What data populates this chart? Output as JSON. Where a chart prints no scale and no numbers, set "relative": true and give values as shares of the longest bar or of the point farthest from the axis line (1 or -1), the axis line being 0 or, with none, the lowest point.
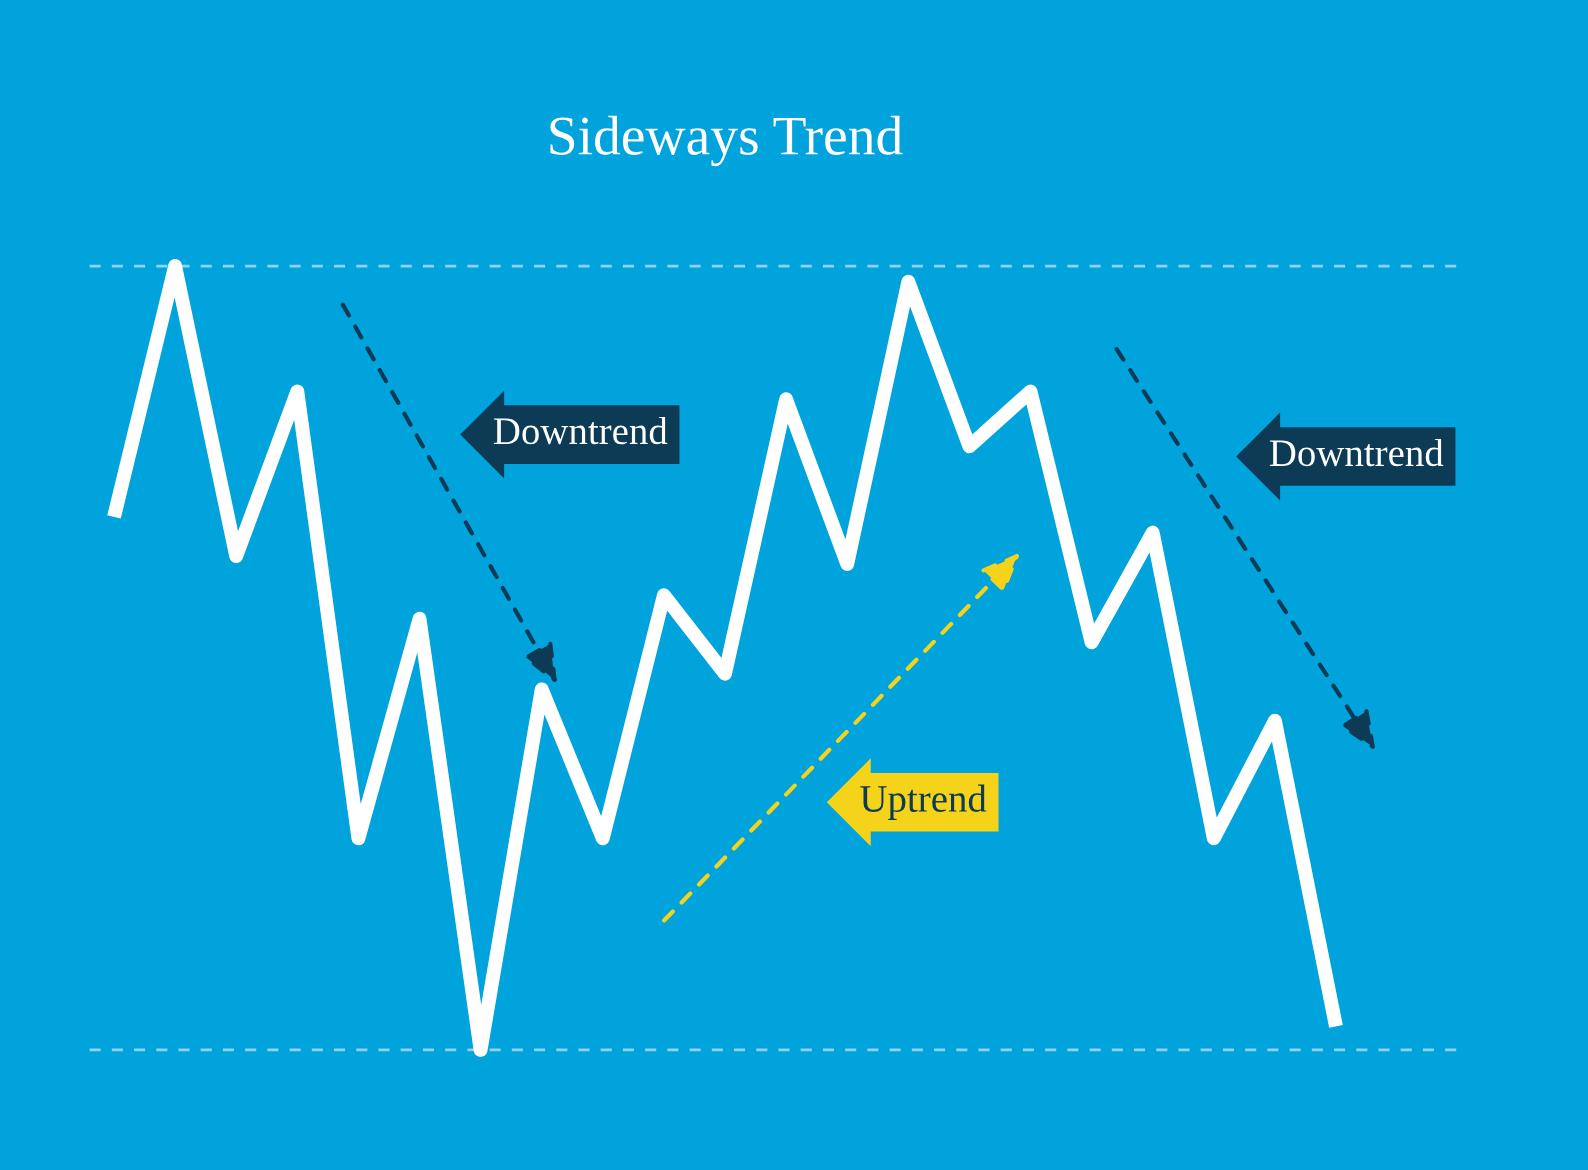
{
  "chart_data": {
    "type": "line",
    "title": "Sideways Trend",
    "relative": true,
    "categories": [
      null,
      null,
      null,
      null,
      null,
      null,
      null,
      null,
      null,
      null,
      null,
      null,
      null,
      null,
      null,
      null,
      null,
      null,
      null,
      null,
      null
    ],
    "series": [
      {
        "color": "#ffffff",
        "values": [
          0.68,
          1.0,
          0.63,
          0.84,
          0.27,
          0.55,
          0.0,
          0.46,
          0.27,
          0.58,
          0.48,
          0.83,
          0.62,
          0.98,
          0.77,
          0.84,
          0.52,
          0.66,
          0.27,
          0.42,
          0.03
        ]
      }
    ],
    "ref_lines": [
      {
        "axis": "y",
        "value": 1.0,
        "color": "#8fd3f0",
        "line_style": "dashed"
      },
      {
        "axis": "y",
        "value": 0.0,
        "color": "#8fd3f0",
        "line_style": "dashed"
      }
    ],
    "annotations": [
      "Downtrend",
      "Downtrend",
      "Uptrend"
    ]
  }
}
